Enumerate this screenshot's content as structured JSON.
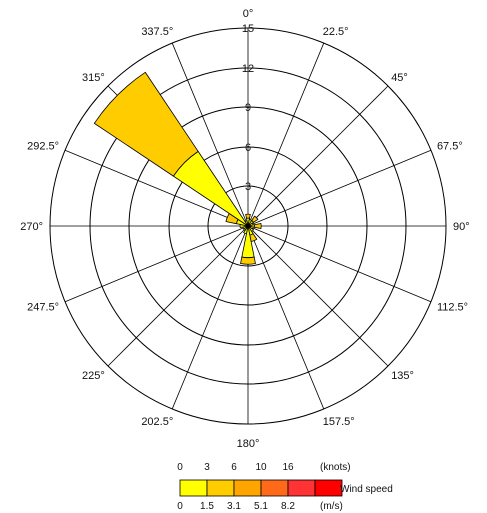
{
  "chart_data": {
    "type": "wind-rose",
    "directions": [
      {
        "label": "0°",
        "angle": 0
      },
      {
        "label": "22.5°",
        "angle": 22.5
      },
      {
        "label": "45°",
        "angle": 45
      },
      {
        "label": "67.5°",
        "angle": 67.5
      },
      {
        "label": "90°",
        "angle": 90
      },
      {
        "label": "112.5°",
        "angle": 112.5
      },
      {
        "label": "135°",
        "angle": 135
      },
      {
        "label": "157.5°",
        "angle": 157.5
      },
      {
        "label": "180°",
        "angle": 180
      },
      {
        "label": "202.5°",
        "angle": 202.5
      },
      {
        "label": "225°",
        "angle": 225
      },
      {
        "label": "247.5°",
        "angle": 247.5
      },
      {
        "label": "270°",
        "angle": 270
      },
      {
        "label": "292.5°",
        "angle": 292.5
      },
      {
        "label": "315°",
        "angle": 315
      },
      {
        "label": "337.5°",
        "angle": 337.5
      }
    ],
    "radial_ticks": [
      "3",
      "6",
      "9",
      "12",
      "15"
    ],
    "radial_max": 15,
    "sectors": [
      {
        "angle": 0,
        "segments": [
          0.6,
          0.3
        ]
      },
      {
        "angle": 22.5,
        "segments": [
          0.5
        ]
      },
      {
        "angle": 45,
        "segments": [
          0.5,
          0.4
        ]
      },
      {
        "angle": 67.5,
        "segments": [
          0.4
        ]
      },
      {
        "angle": 90,
        "segments": [
          0.5,
          0.5
        ]
      },
      {
        "angle": 112.5,
        "segments": [
          0.4
        ]
      },
      {
        "angle": 135,
        "segments": [
          0.5
        ]
      },
      {
        "angle": 157.5,
        "segments": [
          0.7,
          0.5
        ]
      },
      {
        "angle": 180,
        "segments": [
          2.4,
          0.5
        ]
      },
      {
        "angle": 202.5,
        "segments": [
          0.6
        ]
      },
      {
        "angle": 225,
        "segments": [
          0.4
        ]
      },
      {
        "angle": 247.5,
        "segments": [
          0.4
        ]
      },
      {
        "angle": 270,
        "segments": [
          0.6
        ]
      },
      {
        "angle": 292.5,
        "segments": [
          0.9,
          0.8
        ]
      },
      {
        "angle": 315,
        "segments": [
          6.8,
          7.2
        ]
      },
      {
        "angle": 337.5,
        "segments": [
          0.4
        ]
      }
    ],
    "legend": {
      "title": "Wind speed",
      "colors": [
        "#ffff00",
        "#ffcc00",
        "#ffa500",
        "#ff6a1a",
        "#ff3333",
        "#ff0000"
      ],
      "knots_ticks": [
        "0",
        "3",
        "6",
        "10",
        "16"
      ],
      "knots_unit": "(knots)",
      "ms_ticks": [
        "0",
        "1.5",
        "3.1",
        "5.1",
        "8.2"
      ],
      "ms_unit": "(m/s)"
    }
  }
}
